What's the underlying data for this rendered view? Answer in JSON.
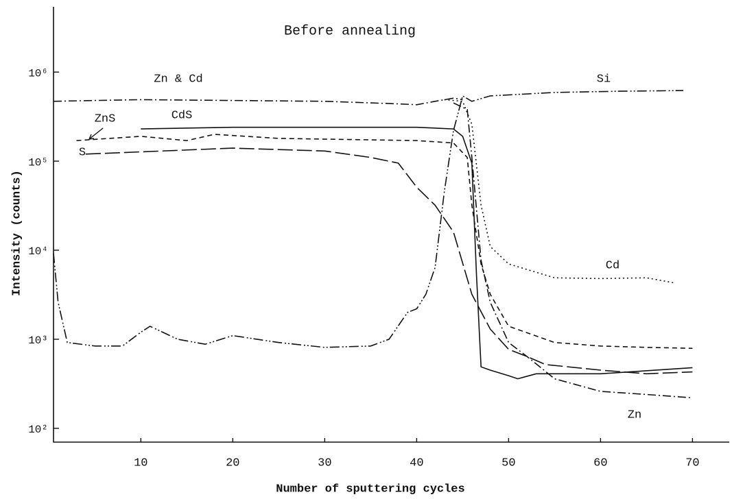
{
  "chart_data": {
    "type": "line",
    "title": "Before annealing",
    "xlabel": "Number of sputtering cycles",
    "ylabel": "Intensity (counts)",
    "log_y": true,
    "xlim": [
      0.5,
      74
    ],
    "xticks": [
      10,
      20,
      30,
      40,
      50,
      60,
      70
    ],
    "ylim": [
      70,
      5400000
    ],
    "yticks": [
      {
        "value": 100,
        "label": "10²"
      },
      {
        "value": 1000,
        "label": "10³"
      },
      {
        "value": 10000,
        "label": "10⁴"
      },
      {
        "value": 100000,
        "label": "10⁵"
      },
      {
        "value": 1000000,
        "label": "10⁶"
      }
    ],
    "series": [
      {
        "name": "Zn & Cd",
        "color": "#111111",
        "x": [
          0.5,
          5,
          10,
          20,
          30,
          38,
          40,
          42,
          44,
          45
        ],
        "values": [
          470000,
          480000,
          490000,
          480000,
          470000,
          440000,
          430000,
          470000,
          510000,
          490000
        ]
      },
      {
        "name": "Si",
        "color": "#111111",
        "x": [
          0.5,
          1,
          2,
          5,
          8,
          10,
          11,
          14,
          17,
          20,
          25,
          30,
          35,
          37,
          39,
          40,
          41,
          42,
          43,
          44,
          45,
          46,
          48,
          55,
          62,
          69
        ],
        "values": [
          9200,
          2600,
          920,
          840,
          840,
          1200,
          1400,
          1000,
          880,
          1100,
          920,
          810,
          840,
          1000,
          2000,
          2200,
          3200,
          6400,
          45000,
          220000,
          540000,
          470000,
          540000,
          590000,
          610000,
          620000
        ]
      },
      {
        "name": "ZnS",
        "color": "#111111",
        "x": [
          3,
          10,
          15,
          18,
          25,
          40,
          44,
          45.5,
          46,
          47,
          48,
          50,
          55,
          60,
          65,
          70
        ],
        "values": [
          170000,
          190000,
          170000,
          200000,
          180000,
          170000,
          160000,
          110000,
          32000,
          7000,
          3200,
          1400,
          920,
          840,
          810,
          790
        ]
      },
      {
        "name": "CdS",
        "color": "#111111",
        "x": [
          10,
          20,
          30,
          40,
          44,
          45,
          46,
          46.5,
          47,
          48,
          50,
          51,
          53,
          55,
          60,
          70
        ],
        "values": [
          230000,
          240000,
          240000,
          240000,
          230000,
          190000,
          95000,
          5400,
          490,
          450,
          390,
          360,
          410,
          410,
          410,
          480
        ]
      },
      {
        "name": "S",
        "color": "#111111",
        "x": [
          4,
          20,
          30,
          35,
          38,
          40,
          42,
          44,
          46,
          48,
          50,
          52,
          54,
          60,
          65,
          70
        ],
        "values": [
          120000,
          140000,
          130000,
          110000,
          95000,
          51000,
          32000,
          16000,
          3200,
          1300,
          770,
          640,
          520,
          450,
          410,
          430
        ]
      },
      {
        "name": "Cd",
        "color": "#111111",
        "x": [
          43,
          45,
          46,
          47,
          48,
          50,
          55,
          60,
          65,
          68
        ],
        "values": [
          490000,
          470000,
          260000,
          32000,
          11000,
          7000,
          4900,
          4800,
          4900,
          4300
        ]
      },
      {
        "name": "Zn",
        "color": "#111111",
        "x": [
          44,
          45.5,
          46,
          47,
          48,
          50,
          52,
          55,
          60,
          65,
          70
        ],
        "values": [
          450000,
          380000,
          110000,
          7700,
          2600,
          920,
          640,
          360,
          260,
          240,
          220
        ]
      }
    ]
  }
}
